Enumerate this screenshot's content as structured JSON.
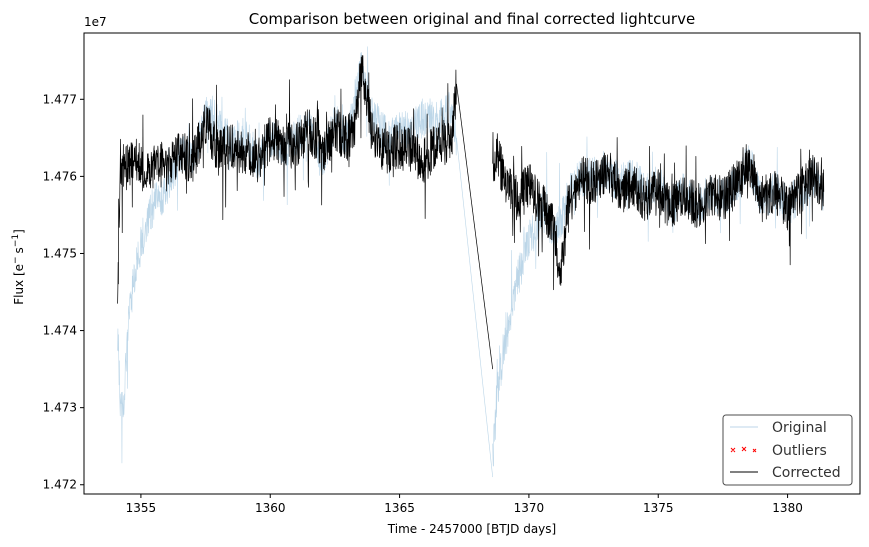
{
  "chart_data": {
    "type": "line",
    "title": "Comparison between original and final corrected lightcurve",
    "xlabel": "Time - 2457000 [BTJD days]",
    "ylabel_main": "Flux [e",
    "ylabel_sup1": "−",
    "ylabel_mid": "s",
    "ylabel_sup2": "−1",
    "ylabel_end": "]",
    "y_multiplier": "1e7",
    "xlim": [
      1352.8,
      1382.8
    ],
    "ylim": [
      1.47188,
      1.47786
    ],
    "x_ticks": [
      1355,
      1360,
      1365,
      1370,
      1375,
      1380
    ],
    "x_tick_labels": [
      "1355",
      "1360",
      "1365",
      "1370",
      "1375",
      "1380"
    ],
    "y_ticks": [
      1.472,
      1.473,
      1.474,
      1.475,
      1.476,
      1.477
    ],
    "y_tick_labels": [
      "1.472",
      "1.473",
      "1.474",
      "1.475",
      "1.476",
      "1.477"
    ],
    "legend_position": "lower-right",
    "grid": false,
    "series": [
      {
        "name": "Original",
        "color": "#bcd6e8",
        "style": "thin-line",
        "segments": [
          {
            "x": [
              1354.1,
              1354.2,
              1354.3,
              1354.5,
              1354.7,
              1355.0,
              1355.3,
              1355.6,
              1356.0,
              1356.5,
              1357.0,
              1357.5,
              1358.0,
              1358.5,
              1359.0,
              1359.5,
              1360.0,
              1360.5,
              1361.0,
              1361.5,
              1362.0,
              1362.5,
              1363.0,
              1363.5,
              1364.0,
              1364.5,
              1365.0,
              1365.5,
              1366.0,
              1366.5,
              1367.0,
              1367.2
            ],
            "y": [
              1.474,
              1.4731,
              1.4729,
              1.474,
              1.4746,
              1.4751,
              1.4755,
              1.4757,
              1.4758,
              1.4763,
              1.4762,
              1.4768,
              1.4767,
              1.4764,
              1.4766,
              1.4762,
              1.4765,
              1.4763,
              1.4765,
              1.4766,
              1.4762,
              1.4767,
              1.4765,
              1.4774,
              1.4768,
              1.4765,
              1.4766,
              1.4766,
              1.4768,
              1.4767,
              1.4769,
              1.4765
            ]
          },
          {
            "x": [
              1367.2,
              1368.6
            ],
            "y": [
              1.4765,
              1.4721
            ]
          },
          {
            "x": [
              1368.6,
              1368.75,
              1369.0,
              1369.3,
              1369.6,
              1370.0,
              1370.3,
              1370.6,
              1371.0,
              1371.3,
              1371.6,
              1372.0,
              1372.5,
              1373.0,
              1373.5,
              1374.0,
              1374.5,
              1375.0,
              1375.5,
              1376.0,
              1376.5,
              1377.0,
              1377.5,
              1378.0,
              1378.5,
              1379.0,
              1379.5,
              1380.0,
              1380.5,
              1381.0,
              1381.4
            ],
            "y": [
              1.4723,
              1.4731,
              1.4737,
              1.4742,
              1.4747,
              1.4752,
              1.4754,
              1.4756,
              1.4752,
              1.4755,
              1.4758,
              1.476,
              1.476,
              1.4761,
              1.4759,
              1.476,
              1.4758,
              1.4759,
              1.4756,
              1.4758,
              1.4756,
              1.4758,
              1.4757,
              1.4759,
              1.4762,
              1.4757,
              1.4758,
              1.4756,
              1.4758,
              1.476,
              1.4758
            ]
          }
        ]
      },
      {
        "name": "Outliers",
        "color": "#ff0000",
        "style": "x-markers",
        "points": []
      },
      {
        "name": "Corrected",
        "color": "#000000",
        "style": "thin-line",
        "segments": [
          {
            "x": [
              1354.1,
              1354.15,
              1354.2,
              1354.4,
              1354.7,
              1355.0,
              1355.3,
              1355.6,
              1356.0,
              1356.5,
              1357.0,
              1357.5,
              1358.0,
              1358.5,
              1359.0,
              1359.5,
              1360.0,
              1360.5,
              1361.0,
              1361.5,
              1362.0,
              1362.5,
              1363.0,
              1363.3,
              1363.55,
              1363.8,
              1364.0,
              1364.5,
              1365.0,
              1365.5,
              1366.0,
              1366.5,
              1367.0,
              1367.2
            ],
            "y": [
              1.4743,
              1.4753,
              1.4762,
              1.4761,
              1.4762,
              1.4762,
              1.476,
              1.4762,
              1.4761,
              1.4763,
              1.4762,
              1.4767,
              1.4763,
              1.4764,
              1.4763,
              1.4762,
              1.4765,
              1.4764,
              1.4764,
              1.4766,
              1.4763,
              1.4766,
              1.4765,
              1.4767,
              1.4775,
              1.4768,
              1.4765,
              1.4763,
              1.4764,
              1.4763,
              1.4762,
              1.4765,
              1.4764,
              1.4772
            ]
          },
          {
            "x": [
              1367.2,
              1368.6
            ],
            "y": [
              1.4772,
              1.4735
            ]
          },
          {
            "x": [
              1368.6,
              1368.8,
              1369.0,
              1369.3,
              1369.6,
              1370.0,
              1370.3,
              1370.6,
              1371.0,
              1371.2,
              1371.5,
              1372.0,
              1372.5,
              1373.0,
              1373.5,
              1374.0,
              1374.5,
              1375.0,
              1375.5,
              1376.0,
              1376.5,
              1377.0,
              1377.5,
              1378.0,
              1378.5,
              1379.0,
              1379.5,
              1380.0,
              1380.5,
              1381.0,
              1381.4
            ],
            "y": [
              1.4761,
              1.4763,
              1.476,
              1.4758,
              1.4757,
              1.4759,
              1.4757,
              1.4756,
              1.4753,
              1.4746,
              1.4756,
              1.476,
              1.4759,
              1.4761,
              1.4758,
              1.4759,
              1.4757,
              1.4758,
              1.4756,
              1.4758,
              1.4756,
              1.4758,
              1.4757,
              1.4759,
              1.4762,
              1.4757,
              1.4758,
              1.4756,
              1.4758,
              1.476,
              1.4758
            ]
          }
        ]
      }
    ]
  }
}
